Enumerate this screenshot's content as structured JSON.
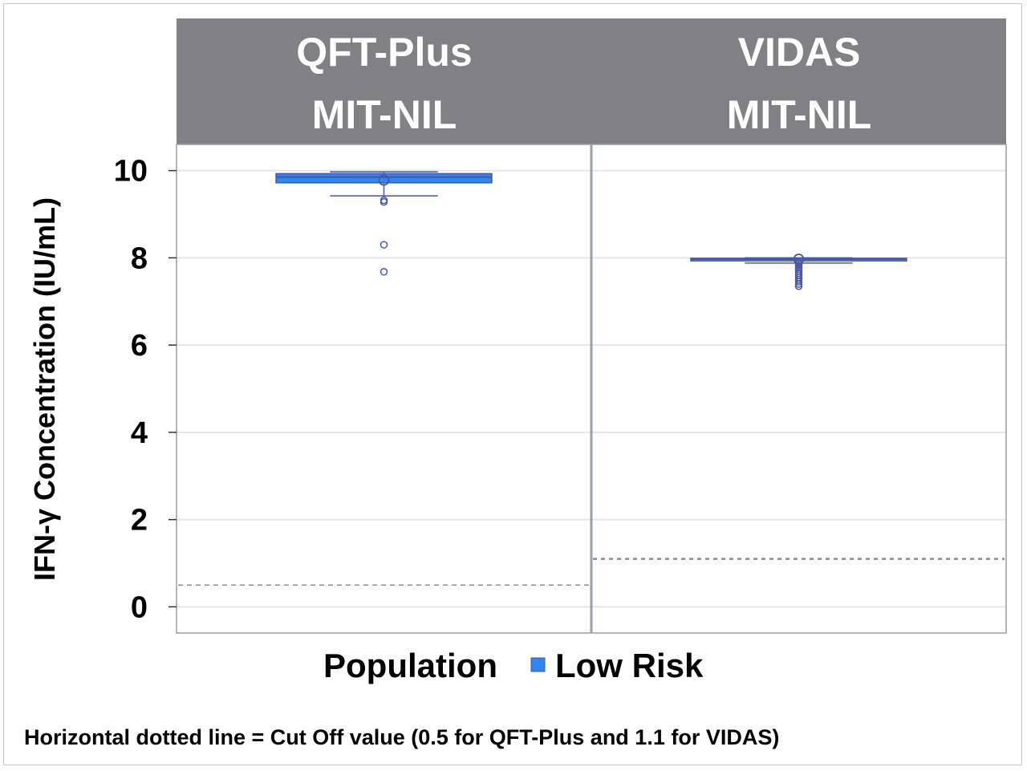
{
  "chart_data": {
    "type": "box",
    "panels": [
      {
        "title_line1": "QFT-Plus",
        "title_line2": "MIT-NIL",
        "box": {
          "whisker_low": 9.42,
          "q1": 9.72,
          "median": 9.85,
          "q3": 9.93,
          "whisker_high": 9.97,
          "mean": 9.78
        },
        "outliers": [
          9.28,
          9.32,
          8.3,
          7.68
        ],
        "cutoff": 0.5
      },
      {
        "title_line1": "VIDAS",
        "title_line2": "MIT-NIL",
        "box": {
          "whisker_low": 7.88,
          "q1": 7.93,
          "median": 7.97,
          "q3": 7.99,
          "whisker_high": 8.0,
          "mean": 7.97
        },
        "outliers": [
          7.9,
          7.86,
          7.82,
          7.78,
          7.74,
          7.7,
          7.65,
          7.6,
          7.55,
          7.5,
          7.45,
          7.4,
          7.35
        ],
        "cutoff": 1.1
      }
    ],
    "ylabel": "IFN-γ  Concentration (IU/mL)",
    "y_ticks": [
      "0",
      "2",
      "4",
      "6",
      "8",
      "10"
    ],
    "ylim": [
      -0.6,
      10.6
    ],
    "grid": true,
    "legend": {
      "title": "Population",
      "entry": "Low Risk",
      "position": "bottom"
    },
    "footnote": "Horizontal dotted line = Cut Off value (0.5 for QFT-Plus and 1.1 for VIDAS)"
  },
  "colors": {
    "header_bg": "#808085",
    "box_fill": "#2f86ee",
    "box_stroke": "#4757a8",
    "grid": "#e6e6e6",
    "cutoff_line": "#8c8c8c"
  }
}
